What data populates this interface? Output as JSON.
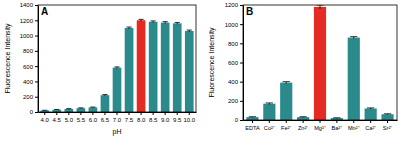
{
  "chart_data": [
    {
      "type": "bar",
      "title": "A",
      "x_label": "pH",
      "y_label": "Fluorescence Intensity",
      "categories": [
        "4.0",
        "4.5",
        "5.0",
        "5.5",
        "6.0",
        "6.5",
        "7.0",
        "7.5",
        "8.0",
        "8.5",
        "9.0",
        "9.5",
        "10.0"
      ],
      "values": [
        20,
        30,
        40,
        50,
        60,
        220,
        580,
        1100,
        1200,
        1180,
        1170,
        1160,
        1060
      ],
      "errors": [
        3,
        3,
        4,
        4,
        5,
        8,
        10,
        12,
        12,
        12,
        12,
        12,
        12
      ],
      "colors": [
        "#2a8a8c",
        "#2a8a8c",
        "#2a8a8c",
        "#2a8a8c",
        "#2a8a8c",
        "#2a8a8c",
        "#2a8a8c",
        "#2a8a8c",
        "#e52a24",
        "#2a8a8c",
        "#2a8a8c",
        "#2a8a8c",
        "#2a8a8c"
      ],
      "ylim": [
        0,
        1400
      ],
      "yticks": [
        0,
        200,
        400,
        600,
        800,
        1000,
        1200,
        1400
      ]
    },
    {
      "type": "bar",
      "title": "B",
      "y_label": "Fluorescence Intensity",
      "categories": [
        "EDTA",
        "Co²⁺",
        "Fe²⁺",
        "Zn²⁺",
        "Mg²⁺",
        "Ba²⁺",
        "Mn²⁺",
        "Ca²⁺",
        "Sr²⁺"
      ],
      "values": [
        30,
        170,
        390,
        30,
        1180,
        20,
        860,
        120,
        60
      ],
      "errors": [
        4,
        8,
        10,
        4,
        20,
        3,
        10,
        6,
        5
      ],
      "colors": [
        "#2a8a8c",
        "#2a8a8c",
        "#2a8a8c",
        "#2a8a8c",
        "#e52a24",
        "#2a8a8c",
        "#2a8a8c",
        "#2a8a8c",
        "#2a8a8c"
      ],
      "ylim": [
        0,
        1200
      ],
      "yticks": [
        0,
        200,
        400,
        600,
        800,
        1000,
        1200
      ]
    }
  ]
}
